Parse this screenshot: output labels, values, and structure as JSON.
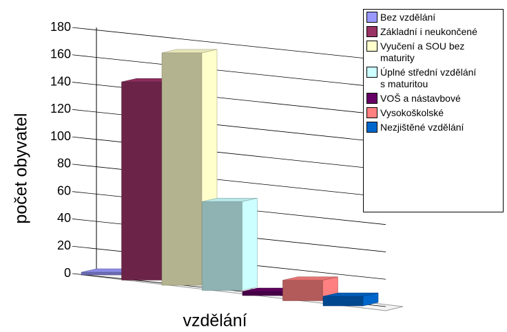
{
  "chart_data": {
    "type": "bar3d",
    "categories": [
      "Bez vzdělání",
      "Základní i neukončené",
      "Vyučení a SOU bez maturity",
      "Úplné střední vzdělání s maturitou",
      "VOŠ a nástavbové",
      "Vysokoškolské",
      "Nezjištěné vzdělání"
    ],
    "values": [
      2,
      145,
      170,
      65,
      3,
      15,
      7
    ],
    "colors": [
      "#9999ff",
      "#993366",
      "#ffffcc",
      "#ccffff",
      "#660066",
      "#ff8080",
      "#0066cc"
    ],
    "ylim": [
      0,
      180
    ],
    "yticks": [
      0,
      20,
      40,
      60,
      80,
      100,
      120,
      140,
      160,
      180
    ],
    "ylabel": "počet obyvatel",
    "xlabel": "vzdělání",
    "grid": true,
    "legend": "right"
  }
}
